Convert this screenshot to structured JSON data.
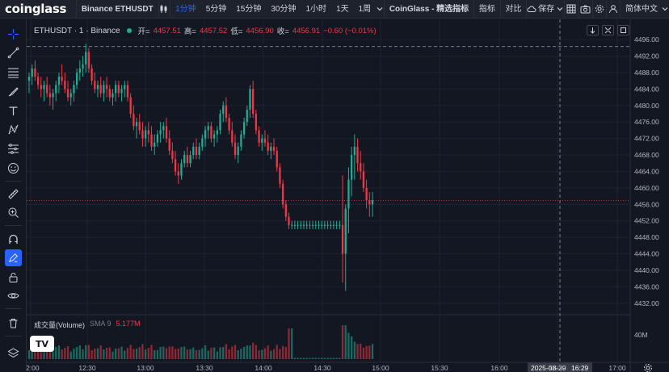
{
  "toolbar": {
    "logo": "coinglass",
    "symbol": "Binance ETHUSDT",
    "intervals": [
      "1分钟",
      "5分钟",
      "15分钟",
      "30分钟",
      "1小时",
      "1天",
      "1周"
    ],
    "active_interval": "1分钟",
    "indicators_label": "CoinGlass - 精选指标",
    "indicator_btn": "指标",
    "compare_btn": "对比",
    "save_btn": "保存",
    "language": "简体中文"
  },
  "legend": {
    "symbol": "ETHUSDT · 1 · Binance",
    "open_label": "开=",
    "open": "4457.51",
    "high_label": "高=",
    "high": "4457.52",
    "low_label": "低=",
    "low": "4456.90",
    "close_label": "收=",
    "close": "4456.91",
    "change": "−0.60 (−0.01%)"
  },
  "volume_legend": {
    "name": "成交量(Volume)",
    "sma": "SMA 9",
    "value": "5.177M"
  },
  "tv_logo": "TV",
  "colors": {
    "up": "#22ab94",
    "down": "#f23645",
    "background": "#131722",
    "accent": "#2962ff"
  },
  "icons": [
    "crosshair-icon",
    "trend-line-icon",
    "fib-icon",
    "brush-icon",
    "text-icon",
    "pattern-icon",
    "forecast-icon",
    "emoji-icon",
    "ruler-icon",
    "zoom-icon",
    "magnet-icon",
    "lock-draw-icon",
    "lock-icon",
    "eye-icon",
    "trash-icon",
    "layers-icon"
  ],
  "chart_data": {
    "type": "candlestick",
    "ylim": [
      4430,
      4497
    ],
    "y_ticks": [
      "4496.00",
      "4492.00",
      "4488.00",
      "4484.00",
      "4480.00",
      "4476.00",
      "4472.00",
      "4468.00",
      "4464.00",
      "4460.00",
      "4456.00",
      "4452.00",
      "4448.00",
      "4444.00",
      "4440.00",
      "4436.00",
      "4432.00"
    ],
    "x_ticks": [
      "12:00",
      "12:30",
      "13:00",
      "13:30",
      "14:00",
      "14:30",
      "15:00",
      "15:30",
      "16:00",
      "16:30",
      "17:00"
    ],
    "crosshair_price": "4494.30",
    "crosshair_date": "2025-08-29",
    "crosshair_time": "16:29",
    "last_price": "4456.91",
    "countdown": "00:46",
    "volume_tick": "40M",
    "volume_last": "5.177M",
    "ohlc": [
      [
        4486,
        4488,
        4483,
        4487
      ],
      [
        4487,
        4490,
        4485,
        4489
      ],
      [
        4489,
        4491,
        4486,
        4487
      ],
      [
        4487,
        4488,
        4484,
        4485
      ],
      [
        4485,
        4487,
        4482,
        4484
      ],
      [
        4484,
        4486,
        4481,
        4485
      ],
      [
        4485,
        4487,
        4482,
        4483
      ],
      [
        4483,
        4485,
        4480,
        4482
      ],
      [
        4482,
        4484,
        4479,
        4483
      ],
      [
        4483,
        4486,
        4481,
        4485
      ],
      [
        4485,
        4488,
        4483,
        4487
      ],
      [
        4487,
        4490,
        4485,
        4486
      ],
      [
        4486,
        4488,
        4483,
        4484
      ],
      [
        4484,
        4486,
        4481,
        4482
      ],
      [
        4482,
        4484,
        4480,
        4483
      ],
      [
        4483,
        4486,
        4481,
        4485
      ],
      [
        4485,
        4489,
        4484,
        4488
      ],
      [
        4488,
        4491,
        4486,
        4489
      ],
      [
        4489,
        4492,
        4487,
        4490
      ],
      [
        4490,
        4495,
        4488,
        4493
      ],
      [
        4493,
        4494,
        4488,
        4489
      ],
      [
        4489,
        4490,
        4485,
        4486
      ],
      [
        4486,
        4488,
        4483,
        4484
      ],
      [
        4484,
        4486,
        4482,
        4485
      ],
      [
        4485,
        4487,
        4482,
        4483
      ],
      [
        4483,
        4486,
        4481,
        4485
      ],
      [
        4485,
        4487,
        4482,
        4484
      ],
      [
        4484,
        4485,
        4481,
        4482
      ],
      [
        4482,
        4484,
        4480,
        4483
      ],
      [
        4483,
        4486,
        4481,
        4485
      ],
      [
        4485,
        4486,
        4482,
        4483
      ],
      [
        4483,
        4485,
        4481,
        4484
      ],
      [
        4484,
        4486,
        4482,
        4485
      ],
      [
        4485,
        4486,
        4481,
        4482
      ],
      [
        4482,
        4483,
        4477,
        4478
      ],
      [
        4478,
        4480,
        4474,
        4475
      ],
      [
        4475,
        4477,
        4472,
        4476
      ],
      [
        4476,
        4478,
        4473,
        4474
      ],
      [
        4474,
        4476,
        4470,
        4472
      ],
      [
        4472,
        4475,
        4470,
        4474
      ],
      [
        4474,
        4476,
        4471,
        4473
      ],
      [
        4473,
        4475,
        4469,
        4470
      ],
      [
        4470,
        4473,
        4468,
        4471
      ],
      [
        4471,
        4474,
        4470,
        4473
      ],
      [
        4473,
        4476,
        4471,
        4474
      ],
      [
        4474,
        4476,
        4472,
        4475
      ],
      [
        4475,
        4477,
        4471,
        4472
      ],
      [
        4472,
        4474,
        4468,
        4469
      ],
      [
        4469,
        4471,
        4466,
        4467
      ],
      [
        4467,
        4469,
        4463,
        4464
      ],
      [
        4464,
        4466,
        4461,
        4463
      ],
      [
        4463,
        4467,
        4462,
        4466
      ],
      [
        4466,
        4469,
        4465,
        4468
      ],
      [
        4468,
        4470,
        4465,
        4466
      ],
      [
        4466,
        4469,
        4465,
        4468
      ],
      [
        4468,
        4471,
        4467,
        4470
      ],
      [
        4470,
        4472,
        4467,
        4468
      ],
      [
        4468,
        4471,
        4467,
        4470
      ],
      [
        4470,
        4473,
        4469,
        4472
      ],
      [
        4472,
        4475,
        4470,
        4474
      ],
      [
        4474,
        4476,
        4472,
        4475
      ],
      [
        4475,
        4476,
        4471,
        4472
      ],
      [
        4472,
        4474,
        4470,
        4473
      ],
      [
        4473,
        4475,
        4471,
        4474
      ],
      [
        4474,
        4479,
        4473,
        4478
      ],
      [
        4478,
        4481,
        4476,
        4480
      ],
      [
        4480,
        4482,
        4476,
        4477
      ],
      [
        4477,
        4478,
        4473,
        4474
      ],
      [
        4474,
        4476,
        4470,
        4471
      ],
      [
        4471,
        4473,
        4467,
        4468
      ],
      [
        4468,
        4471,
        4466,
        4470
      ],
      [
        4470,
        4474,
        4469,
        4473
      ],
      [
        4473,
        4477,
        4472,
        4476
      ],
      [
        4476,
        4480,
        4475,
        4479
      ],
      [
        4479,
        4485,
        4477,
        4484
      ],
      [
        4484,
        4486,
        4477,
        4478
      ],
      [
        4478,
        4479,
        4473,
        4474
      ],
      [
        4474,
        4475,
        4470,
        4471
      ],
      [
        4471,
        4473,
        4469,
        4472
      ],
      [
        4472,
        4474,
        4470,
        4471
      ],
      [
        4471,
        4473,
        4468,
        4469
      ],
      [
        4469,
        4471,
        4467,
        4470
      ],
      [
        4470,
        4472,
        4468,
        4469
      ],
      [
        4469,
        4470,
        4464,
        4465
      ],
      [
        4465,
        4466,
        4460,
        4461
      ],
      [
        4461,
        4462,
        4455,
        4456
      ],
      [
        4456,
        4457,
        4452,
        4453
      ],
      [
        4453,
        4454,
        4450,
        4451
      ],
      [
        4451,
        4452,
        4450,
        4451
      ],
      [
        4451,
        4452,
        4450,
        4451
      ],
      [
        4451,
        4452,
        4450,
        4451
      ],
      [
        4451,
        4452,
        4450,
        4451
      ],
      [
        4451,
        4452,
        4450,
        4451
      ],
      [
        4451,
        4452,
        4450,
        4451
      ],
      [
        4451,
        4452,
        4450,
        4451
      ],
      [
        4451,
        4452,
        4450,
        4451
      ],
      [
        4451,
        4452,
        4450,
        4451
      ],
      [
        4451,
        4452,
        4450,
        4451
      ],
      [
        4451,
        4452,
        4450,
        4451
      ],
      [
        4451,
        4452,
        4450,
        4451
      ],
      [
        4451,
        4452,
        4450,
        4451
      ],
      [
        4451,
        4452,
        4450,
        4451
      ],
      [
        4451,
        4452,
        4450,
        4451
      ],
      [
        4451,
        4452,
        4450,
        4451
      ],
      [
        4451,
        4452,
        4450,
        4451
      ],
      [
        4451,
        4463,
        4437,
        4444
      ],
      [
        4444,
        4456,
        4435,
        4455
      ],
      [
        4455,
        4465,
        4449,
        4462
      ],
      [
        4462,
        4470,
        4458,
        4468
      ],
      [
        4468,
        4473,
        4462,
        4470
      ],
      [
        4470,
        4472,
        4464,
        4466
      ],
      [
        4466,
        4469,
        4462,
        4464
      ],
      [
        4464,
        4466,
        4459,
        4460
      ],
      [
        4460,
        4462,
        4455,
        4457
      ],
      [
        4457,
        4459,
        4453,
        4456
      ],
      [
        4456,
        4459,
        4453,
        4457
      ]
    ],
    "volume_hint": "bars at bottom, spikes near 14:10 and 14:40"
  }
}
